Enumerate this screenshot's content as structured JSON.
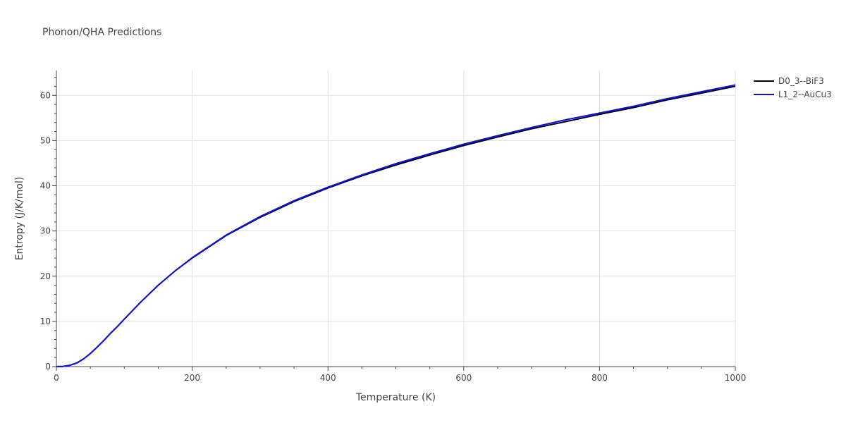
{
  "chart_data": {
    "type": "line",
    "title": "Phonon/QHA Predictions",
    "xlabel": "Temperature (K)",
    "ylabel": "Entropy (J/K/mol)",
    "xlim": [
      0,
      1000
    ],
    "ylim": [
      0,
      65.5
    ],
    "xticks": [
      0,
      200,
      400,
      600,
      800,
      1000
    ],
    "yticks": [
      0,
      10,
      20,
      30,
      40,
      50,
      60
    ],
    "grid": true,
    "legend_position": "top-right",
    "x": [
      0,
      10,
      20,
      30,
      40,
      50,
      60,
      70,
      80,
      90,
      100,
      125,
      150,
      175,
      200,
      250,
      300,
      350,
      400,
      450,
      500,
      550,
      600,
      650,
      700,
      750,
      800,
      850,
      900,
      950,
      1000
    ],
    "series": [
      {
        "name": "D0_3--BiF3",
        "color": "#000000",
        "values": [
          0,
          0.05,
          0.3,
          0.8,
          1.7,
          2.9,
          4.3,
          5.8,
          7.4,
          8.9,
          10.5,
          14.4,
          18.0,
          21.2,
          24.0,
          29.0,
          33.0,
          36.5,
          39.5,
          42.2,
          44.6,
          46.8,
          48.9,
          50.8,
          52.6,
          54.2,
          55.8,
          57.3,
          59.0,
          60.5,
          62.0
        ]
      },
      {
        "name": "L1_2--AuCu3",
        "color": "#1010e0",
        "values": [
          0,
          0.05,
          0.3,
          0.8,
          1.7,
          2.9,
          4.3,
          5.8,
          7.4,
          8.9,
          10.5,
          14.4,
          18.0,
          21.2,
          24.1,
          29.1,
          33.2,
          36.7,
          39.7,
          42.4,
          44.9,
          47.1,
          49.2,
          51.1,
          52.9,
          54.6,
          56.1,
          57.6,
          59.3,
          60.8,
          62.3
        ]
      }
    ]
  }
}
